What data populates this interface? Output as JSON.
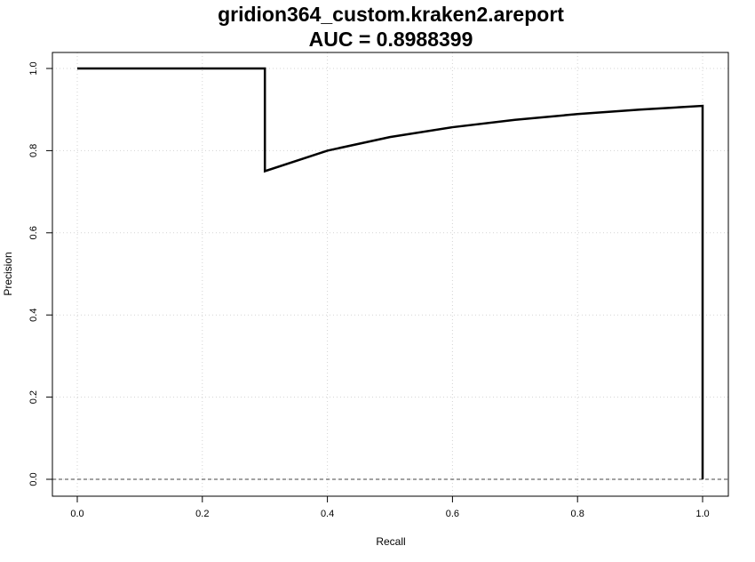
{
  "chart_data": {
    "type": "line",
    "title": "gridion364_custom.kraken2.areport",
    "subtitle": "AUC = 0.8988399",
    "xlabel": "Recall",
    "ylabel": "Precision",
    "xlim": [
      0,
      1
    ],
    "ylim": [
      0,
      1
    ],
    "xticks": [
      "0.0",
      "0.2",
      "0.4",
      "0.6",
      "0.8",
      "1.0"
    ],
    "yticks": [
      "0.0",
      "0.2",
      "0.4",
      "0.6",
      "0.8",
      "1.0"
    ],
    "grid": true,
    "baseline": {
      "y": 0,
      "style": "dashed"
    },
    "series": [
      {
        "x": [
          0,
          0.3,
          0.3,
          0.4,
          0.5,
          0.6,
          0.7,
          0.8,
          0.9,
          1.0,
          1.0
        ],
        "y": [
          1.0,
          1.0,
          0.75,
          0.8,
          0.833,
          0.857,
          0.875,
          0.889,
          0.9,
          0.909,
          0.0
        ],
        "color": "#000000"
      }
    ]
  }
}
